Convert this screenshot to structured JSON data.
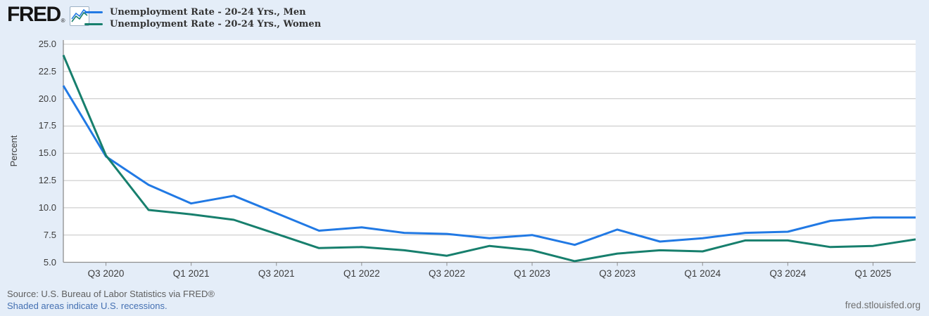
{
  "header": {
    "logo_text": "FRED",
    "registered_mark": "®"
  },
  "legend": [
    {
      "label": "Unemployment Rate - 20-24 Yrs., Men",
      "color": "#2179e4"
    },
    {
      "label": "Unemployment Rate - 20-24 Yrs., Women",
      "color": "#177f6d"
    }
  ],
  "chart_data": {
    "type": "line",
    "title": "",
    "xlabel": "",
    "ylabel": "Percent",
    "ylim": [
      5.0,
      25.0
    ],
    "ytick_step": 2.5,
    "yticks": [
      "25.0",
      "22.5",
      "20.0",
      "17.5",
      "15.0",
      "12.5",
      "10.0",
      "7.5",
      "5.0"
    ],
    "grid": "horizontal",
    "legend_position": "top-left",
    "x_quarters": [
      "Q2 2020",
      "Q3 2020",
      "Q4 2020",
      "Q1 2021",
      "Q2 2021",
      "Q3 2021",
      "Q4 2021",
      "Q1 2022",
      "Q2 2022",
      "Q3 2022",
      "Q4 2022",
      "Q1 2023",
      "Q2 2023",
      "Q3 2023",
      "Q4 2023",
      "Q1 2024",
      "Q2 2024",
      "Q3 2024",
      "Q4 2024",
      "Q1 2025",
      "Q2 2025"
    ],
    "xtick_labels": [
      "Q3 2020",
      "Q1 2021",
      "Q3 2021",
      "Q1 2022",
      "Q3 2022",
      "Q1 2023",
      "Q3 2023",
      "Q1 2024",
      "Q3 2024",
      "Q1 2025"
    ],
    "series": [
      {
        "name": "Unemployment Rate - 20-24 Yrs., Men",
        "color": "#2179e4",
        "values": [
          21.2,
          14.7,
          12.1,
          10.4,
          11.1,
          9.5,
          7.9,
          8.2,
          7.7,
          7.6,
          7.2,
          7.5,
          6.6,
          8.0,
          6.9,
          7.2,
          7.7,
          7.8,
          8.8,
          9.1,
          9.1
        ]
      },
      {
        "name": "Unemployment Rate - 20-24 Yrs., Women",
        "color": "#177f6d",
        "values": [
          24.0,
          14.8,
          9.8,
          9.4,
          8.9,
          7.6,
          6.3,
          6.4,
          6.1,
          5.6,
          6.5,
          6.1,
          5.1,
          5.8,
          6.1,
          6.0,
          7.0,
          7.0,
          6.4,
          6.5,
          7.1
        ]
      }
    ]
  },
  "colors": {
    "background": "#e4edf8",
    "plot_background": "#ffffff",
    "gridline": "#c4c4c4",
    "axis": "#8e8e8e",
    "link": "#4470b2"
  },
  "footer": {
    "source": "Source: U.S. Bureau of Labor Statistics via FRED®",
    "recessions_note": "Shaded areas indicate U.S. recessions.",
    "site": "fred.stlouisfed.org"
  }
}
